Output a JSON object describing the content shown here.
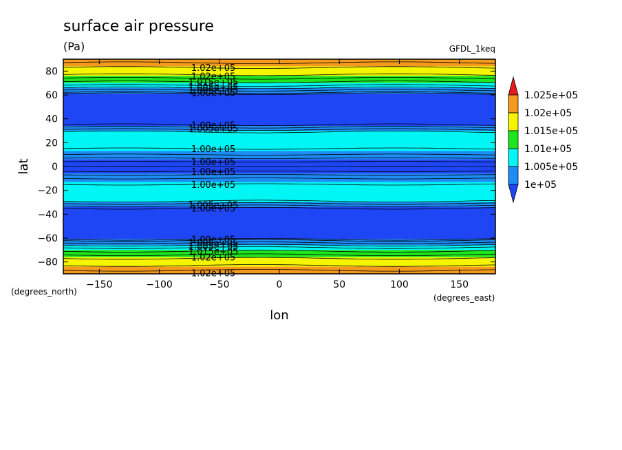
{
  "chart_data": {
    "type": "heatmap",
    "title": "surface air pressure",
    "units": "(Pa)",
    "model": "GFDL_1keq",
    "xlabel": "lon",
    "ylabel": "lat",
    "x_unit_note": "(degrees_east)",
    "y_unit_note": "(degrees_north)",
    "xlim": [
      -180,
      180
    ],
    "ylim": [
      -90,
      90
    ],
    "x_ticks": [
      -150,
      -100,
      -50,
      0,
      50,
      100,
      150
    ],
    "y_ticks": [
      -80,
      -60,
      -40,
      -20,
      0,
      20,
      40,
      60,
      80
    ],
    "x_tick_labels": [
      "−150",
      "−100",
      "−50",
      "0",
      "50",
      "100",
      "150"
    ],
    "y_tick_labels": [
      "−80",
      "−60",
      "−40",
      "−20",
      "0",
      "20",
      "40",
      "60",
      "80"
    ],
    "colorbar": {
      "labels": [
        "1.025e+05",
        "1.02e+05",
        "1.015e+05",
        "1.01e+05",
        "1.005e+05",
        "1e+05"
      ],
      "colors": [
        "#e41a1c",
        "#f59a1c",
        "#f5f500",
        "#1ee61e",
        "#00f5f5",
        "#1e8cf5",
        "#1e46f5"
      ]
    },
    "bands": [
      {
        "lat_from": 84,
        "lat_to": 90,
        "color": "#f59a1c"
      },
      {
        "lat_from": 76,
        "lat_to": 84,
        "color": "#f5f500"
      },
      {
        "lat_from": 70,
        "lat_to": 76,
        "color": "#1ee61e"
      },
      {
        "lat_from": 66,
        "lat_to": 70,
        "color": "#00f5f5"
      },
      {
        "lat_from": 61,
        "lat_to": 66,
        "color": "#1e8cf5"
      },
      {
        "lat_from": 34,
        "lat_to": 61,
        "color": "#1e46f5"
      },
      {
        "lat_from": 30,
        "lat_to": 34,
        "color": "#1e8cf5"
      },
      {
        "lat_from": 13,
        "lat_to": 30,
        "color": "#00f5f5"
      },
      {
        "lat_from": 6,
        "lat_to": 13,
        "color": "#1e8cf5"
      },
      {
        "lat_from": -6,
        "lat_to": 6,
        "color": "#1e46f5"
      },
      {
        "lat_from": -13,
        "lat_to": -6,
        "color": "#1e8cf5"
      },
      {
        "lat_from": -30,
        "lat_to": -13,
        "color": "#00f5f5"
      },
      {
        "lat_from": -34,
        "lat_to": -30,
        "color": "#1e8cf5"
      },
      {
        "lat_from": -61,
        "lat_to": -34,
        "color": "#1e46f5"
      },
      {
        "lat_from": -66,
        "lat_to": -61,
        "color": "#1e8cf5"
      },
      {
        "lat_from": -70,
        "lat_to": -66,
        "color": "#00f5f5"
      },
      {
        "lat_from": -76,
        "lat_to": -70,
        "color": "#1ee61e"
      },
      {
        "lat_from": -84,
        "lat_to": -76,
        "color": "#f5f500"
      },
      {
        "lat_from": -90,
        "lat_to": -84,
        "color": "#f59a1c"
      }
    ],
    "contours": [
      87,
      83,
      77,
      74,
      71,
      68,
      66,
      64,
      62,
      61,
      35,
      33,
      31,
      29,
      15,
      10,
      7,
      4,
      0,
      -4,
      -7,
      -10,
      -15,
      -29,
      -31,
      -33,
      -35,
      -61,
      -62,
      -64,
      -66,
      -68,
      -71,
      -74,
      -77,
      -83,
      -87
    ],
    "contour_labels": [
      {
        "text": "1.02e+05",
        "lat": 83
      },
      {
        "text": "1.02e+05",
        "lat": 76
      },
      {
        "text": "1.015e+05",
        "lat": 71
      },
      {
        "text": "1.005e+05",
        "lat": 67
      },
      {
        "text": "1.005e+05",
        "lat": 64
      },
      {
        "text": "1.00e+05",
        "lat": 62
      },
      {
        "text": "1.00e+05",
        "lat": 35
      },
      {
        "text": "1.005e+05",
        "lat": 32
      },
      {
        "text": "1.00e+05",
        "lat": 15
      },
      {
        "text": "1.00e+05",
        "lat": 4
      },
      {
        "text": "1.00e+05",
        "lat": -4
      },
      {
        "text": "1.00e+05",
        "lat": -15
      },
      {
        "text": "1.005e+05",
        "lat": -32
      },
      {
        "text": "1.00e+05",
        "lat": -35
      },
      {
        "text": "1.00e+05",
        "lat": -61
      },
      {
        "text": "1.005e+05",
        "lat": -64
      },
      {
        "text": "1.005e+05",
        "lat": -67
      },
      {
        "text": "1.015e+05",
        "lat": -71
      },
      {
        "text": "1.02e+05",
        "lat": -76
      },
      {
        "text": "1.02e+05",
        "lat": -89
      }
    ],
    "contour_label_lon": -55
  }
}
